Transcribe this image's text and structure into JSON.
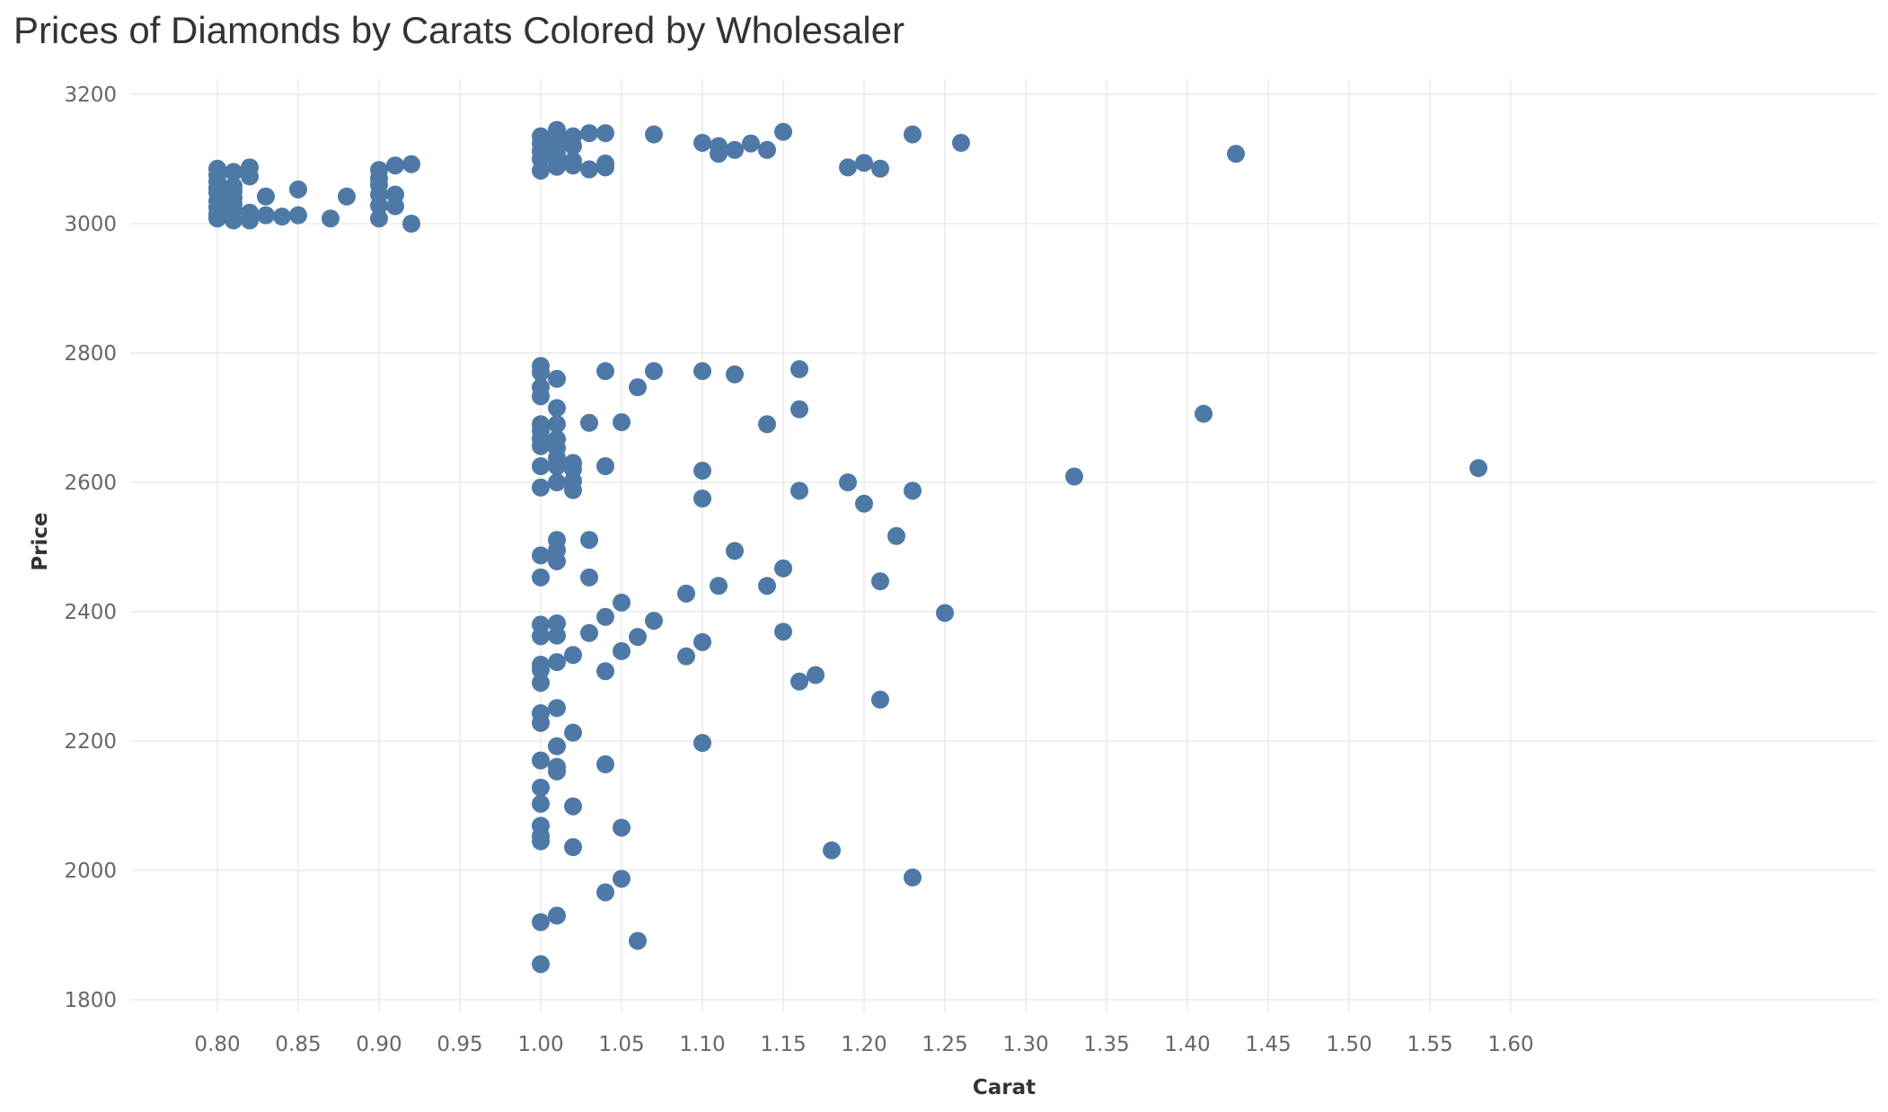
{
  "chart_data": {
    "type": "scatter",
    "title": "Prices of Diamonds by Carats Colored by Wholesaler",
    "xlabel": "Carat",
    "ylabel": "Price",
    "xlim": [
      0.76,
      1.62
    ],
    "ylim": [
      1780,
      3220
    ],
    "xticks": [
      "0.80",
      "0.85",
      "0.90",
      "0.95",
      "1.00",
      "1.05",
      "1.10",
      "1.15",
      "1.20",
      "1.25",
      "1.30",
      "1.35",
      "1.40",
      "1.45",
      "1.50",
      "1.55",
      "1.60"
    ],
    "yticks": [
      "1800",
      "2000",
      "2200",
      "2400",
      "2600",
      "2800",
      "3000",
      "3200"
    ],
    "grid": true,
    "marker_color": "#4e79a7",
    "points": [
      [
        0.8,
        3085
      ],
      [
        0.8,
        3075
      ],
      [
        0.8,
        3065
      ],
      [
        0.8,
        3055
      ],
      [
        0.8,
        3048
      ],
      [
        0.8,
        3035
      ],
      [
        0.8,
        3025
      ],
      [
        0.8,
        3015
      ],
      [
        0.8,
        3008
      ],
      [
        0.81,
        3080
      ],
      [
        0.81,
        3058
      ],
      [
        0.81,
        3050
      ],
      [
        0.81,
        3040
      ],
      [
        0.81,
        3030
      ],
      [
        0.81,
        3022
      ],
      [
        0.81,
        3005
      ],
      [
        0.82,
        3087
      ],
      [
        0.82,
        3073
      ],
      [
        0.82,
        3017
      ],
      [
        0.82,
        3005
      ],
      [
        0.83,
        3042
      ],
      [
        0.83,
        3013
      ],
      [
        0.84,
        3011
      ],
      [
        0.85,
        3053
      ],
      [
        0.85,
        3013
      ],
      [
        0.87,
        3008
      ],
      [
        0.88,
        3042
      ],
      [
        0.9,
        3083
      ],
      [
        0.9,
        3070
      ],
      [
        0.9,
        3060
      ],
      [
        0.9,
        3045
      ],
      [
        0.9,
        3028
      ],
      [
        0.9,
        3008
      ],
      [
        0.91,
        3090
      ],
      [
        0.91,
        3045
      ],
      [
        0.91,
        3027
      ],
      [
        0.92,
        3092
      ],
      [
        0.92,
        3000
      ],
      [
        1.0,
        3135
      ],
      [
        1.0,
        3124
      ],
      [
        1.0,
        3112
      ],
      [
        1.0,
        3100
      ],
      [
        1.0,
        3082
      ],
      [
        1.01,
        3145
      ],
      [
        1.01,
        3130
      ],
      [
        1.01,
        3118
      ],
      [
        1.01,
        3108
      ],
      [
        1.01,
        3098
      ],
      [
        1.01,
        3088
      ],
      [
        1.02,
        3135
      ],
      [
        1.02,
        3120
      ],
      [
        1.02,
        3097
      ],
      [
        1.02,
        3090
      ],
      [
        1.03,
        3140
      ],
      [
        1.03,
        3084
      ],
      [
        1.04,
        3140
      ],
      [
        1.04,
        3093
      ],
      [
        1.04,
        3087
      ],
      [
        1.07,
        3138
      ],
      [
        1.1,
        3125
      ],
      [
        1.11,
        3120
      ],
      [
        1.11,
        3108
      ],
      [
        1.12,
        3114
      ],
      [
        1.13,
        3124
      ],
      [
        1.14,
        3114
      ],
      [
        1.15,
        3142
      ],
      [
        1.19,
        3087
      ],
      [
        1.2,
        3094
      ],
      [
        1.21,
        3085
      ],
      [
        1.23,
        3138
      ],
      [
        1.26,
        3125
      ],
      [
        1.43,
        3108
      ],
      [
        1.0,
        2780
      ],
      [
        1.0,
        2770
      ],
      [
        1.0,
        2747
      ],
      [
        1.0,
        2733
      ],
      [
        1.0,
        2690
      ],
      [
        1.0,
        2680
      ],
      [
        1.0,
        2667
      ],
      [
        1.0,
        2656
      ],
      [
        1.0,
        2625
      ],
      [
        1.0,
        2592
      ],
      [
        1.01,
        2760
      ],
      [
        1.01,
        2715
      ],
      [
        1.01,
        2690
      ],
      [
        1.01,
        2667
      ],
      [
        1.01,
        2653
      ],
      [
        1.01,
        2638
      ],
      [
        1.01,
        2625
      ],
      [
        1.01,
        2600
      ],
      [
        1.02,
        2630
      ],
      [
        1.02,
        2620
      ],
      [
        1.02,
        2602
      ],
      [
        1.02,
        2588
      ],
      [
        1.03,
        2692
      ],
      [
        1.04,
        2772
      ],
      [
        1.04,
        2625
      ],
      [
        1.05,
        2693
      ],
      [
        1.06,
        2747
      ],
      [
        1.07,
        2772
      ],
      [
        1.1,
        2772
      ],
      [
        1.1,
        2618
      ],
      [
        1.1,
        2575
      ],
      [
        1.12,
        2767
      ],
      [
        1.14,
        2690
      ],
      [
        1.16,
        2775
      ],
      [
        1.16,
        2713
      ],
      [
        1.16,
        2587
      ],
      [
        1.19,
        2600
      ],
      [
        1.2,
        2567
      ],
      [
        1.23,
        2587
      ],
      [
        1.33,
        2609
      ],
      [
        1.41,
        2706
      ],
      [
        1.58,
        2622
      ],
      [
        1.0,
        2487
      ],
      [
        1.0,
        2453
      ],
      [
        1.01,
        2511
      ],
      [
        1.01,
        2495
      ],
      [
        1.01,
        2478
      ],
      [
        1.03,
        2511
      ],
      [
        1.03,
        2453
      ],
      [
        1.12,
        2494
      ],
      [
        1.15,
        2467
      ],
      [
        1.22,
        2517
      ],
      [
        1.21,
        2447
      ],
      [
        1.09,
        2428
      ],
      [
        1.11,
        2440
      ],
      [
        1.14,
        2440
      ],
      [
        1.05,
        2414
      ],
      [
        1.25,
        2398
      ],
      [
        1.0,
        2380
      ],
      [
        1.0,
        2362
      ],
      [
        1.0,
        2318
      ],
      [
        1.0,
        2310
      ],
      [
        1.0,
        2290
      ],
      [
        1.01,
        2382
      ],
      [
        1.01,
        2363
      ],
      [
        1.01,
        2322
      ],
      [
        1.02,
        2333
      ],
      [
        1.03,
        2367
      ],
      [
        1.04,
        2392
      ],
      [
        1.04,
        2308
      ],
      [
        1.05,
        2339
      ],
      [
        1.06,
        2361
      ],
      [
        1.07,
        2386
      ],
      [
        1.09,
        2331
      ],
      [
        1.1,
        2353
      ],
      [
        1.15,
        2369
      ],
      [
        1.16,
        2292
      ],
      [
        1.17,
        2302
      ],
      [
        1.21,
        2264
      ],
      [
        1.0,
        2243
      ],
      [
        1.0,
        2228
      ],
      [
        1.0,
        2170
      ],
      [
        1.0,
        2128
      ],
      [
        1.0,
        2103
      ],
      [
        1.0,
        2069
      ],
      [
        1.0,
        2053
      ],
      [
        1.0,
        2045
      ],
      [
        1.01,
        2251
      ],
      [
        1.01,
        2192
      ],
      [
        1.01,
        2160
      ],
      [
        1.01,
        2153
      ],
      [
        1.02,
        2213
      ],
      [
        1.02,
        2099
      ],
      [
        1.02,
        2036
      ],
      [
        1.04,
        2164
      ],
      [
        1.05,
        2066
      ],
      [
        1.1,
        2197
      ],
      [
        1.18,
        2031
      ],
      [
        1.23,
        1989
      ],
      [
        1.05,
        1987
      ],
      [
        1.04,
        1966
      ],
      [
        1.01,
        1930
      ],
      [
        1.0,
        1920
      ],
      [
        1.06,
        1891
      ],
      [
        1.0,
        1855
      ]
    ]
  }
}
